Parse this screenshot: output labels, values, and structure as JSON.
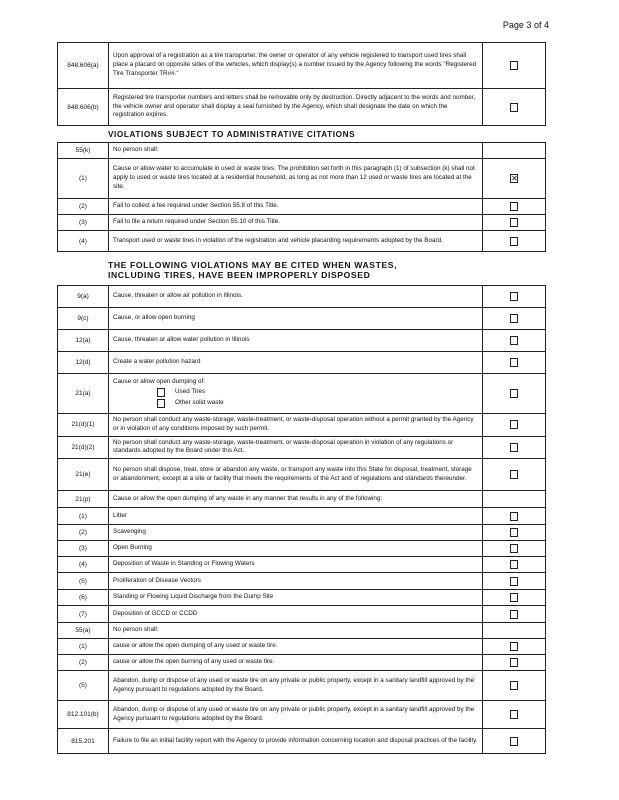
{
  "page": {
    "label": "Page",
    "current": "3",
    "of": "of",
    "total": "4"
  },
  "section1": {
    "rows": [
      {
        "code": "848.606(a)",
        "text": "Upon approval of a registration as a tire transporter, the owner or operator of any vehicle registered to transport used tires shall place a placard on opposite sides of the vehicles, which display(s) a number issued by the Agency following the words \"Registered Tire Transporter TR##.\"",
        "checked": false
      },
      {
        "code": "848.606(b)",
        "text": "Registered tire transporter numbers and letters shall be removable only by destruction. Directly adjacent to the words and number, the vehicle owner and operator shall display a seal furnished by the Agency, which shall designate the date on which the registration expires.",
        "checked": false
      }
    ]
  },
  "section2": {
    "heading": "VIOLATIONS SUBJECT TO ADMINISTRATIVE CITATIONS",
    "rows": [
      {
        "code": "55(k)",
        "text": "No person shall:",
        "checked": null
      },
      {
        "code": "(1)",
        "text": "Cause or allow water to accumulate in used or waste tires. The prohibition set forth in this paragraph (1) of subsection (k) shall not apply to used or waste tires located at a residential household, as long as not more than 12 used or waste tires are located at the site.",
        "checked": true
      },
      {
        "code": "(2)",
        "text": "Fail to collect a fee required under Section 55.8 of this Title.",
        "checked": false
      },
      {
        "code": "(3)",
        "text": "Fail to file a return required under Section 55.10 of this Title.",
        "checked": false
      },
      {
        "code": "(4)",
        "text": "Transport used or waste tires in violation of the registration and vehicle placarding requirements adopted by the Board.",
        "checked": false
      }
    ]
  },
  "section3": {
    "heading_line1": "THE FOLLOWING VIOLATIONS MAY BE CITED WHEN WASTES,",
    "heading_line2": "INCLUDING TIRES, HAVE BEEN IMPROPERLY DISPOSED",
    "rows": [
      {
        "code": "9(a)",
        "text": "Cause, threaten or allow air pollution in Illinois.",
        "checked": false
      },
      {
        "code": "9(c)",
        "text": "Cause, or allow open burning",
        "checked": false
      },
      {
        "code": "12(a)",
        "text": "Cause, threaten or allow water pollution in Illinois",
        "checked": false
      },
      {
        "code": "12(d)",
        "text": "Create a water pollution hazard",
        "checked": false
      },
      {
        "code": "21(a)",
        "text": "Cause or allow open dumping of:",
        "checked": false,
        "options": [
          {
            "label": "Used Tires",
            "checked": false
          },
          {
            "label": "Other solid waste",
            "checked": false
          }
        ]
      },
      {
        "code": "21(d)(1)",
        "text": "No person shall conduct any waste-storage, waste-treatment, or waste-disposal operation without a permit granted by the Agency or in violation of any conditions imposed by such permit.",
        "checked": false
      },
      {
        "code": "21(d)(2)",
        "text": "No person shall conduct any waste-storage, waste-treatment, or waste-disposal operation in violation of any regulations or standards adopted by the Board under this Act.",
        "checked": false
      },
      {
        "code": "21(e)",
        "text": "No person shall dispose, treat, store or abandon any waste, or transport any waste into this State for disposal, treatment, storage or abandonment, except at a site or facility that meets the requirements of the Act and of regulations and standards thereunder.",
        "checked": false
      },
      {
        "code": "21(p)",
        "text": "Cause or allow the open dumping of any waste in any manner that results in any of the following:",
        "checked": null
      },
      {
        "code": "(1)",
        "text": "Litter",
        "checked": false
      },
      {
        "code": "(2)",
        "text": "Scavenging",
        "checked": false
      },
      {
        "code": "(3)",
        "text": "Open Burning",
        "checked": false
      },
      {
        "code": "(4)",
        "text": "Deposition of Waste in Standing or Flowing Waters",
        "checked": false
      },
      {
        "code": "(5)",
        "text": "Proliferation of Disease Vectors",
        "checked": false
      },
      {
        "code": "(6)",
        "text": "Standing or Flowing Liquid Discharge from the Dump Site",
        "checked": false
      },
      {
        "code": "(7)",
        "text": "Deposition of GCCD or CCDD",
        "checked": false
      },
      {
        "code": "55(a)",
        "text": "No person shall:",
        "checked": null
      },
      {
        "code": "(1)",
        "text": "cause or allow the open dumping of any used or waste tire.",
        "checked": false
      },
      {
        "code": "(2)",
        "text": "cause or allow the open burning of any used or waste tire.",
        "checked": false
      },
      {
        "code": "(5)",
        "text": "Abandon, dump or dispose of any used or waste tire on any private or public property, except in a sanitary landfill approved by the Agency pursuant to regulations adopted by the Board.",
        "checked": false
      },
      {
        "code": "812.101(b)",
        "text": "Abandon, dump or dispose of any used or waste tire on any private or public property, except in a sanitary landfill approved by the Agency pursuant to regulations adopted by the Board.",
        "checked": false
      },
      {
        "code": "815.201",
        "text": "Failure to file an initial facility report with the Agency to provide information concerning location and disposal practices of the facility.",
        "checked": false
      }
    ]
  }
}
